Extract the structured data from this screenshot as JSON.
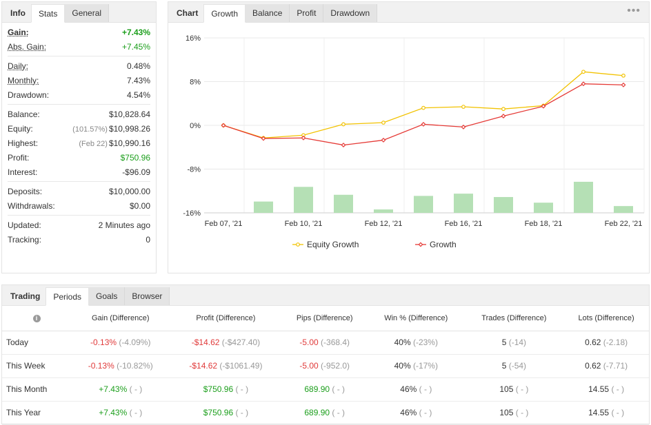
{
  "info_panel": {
    "tabs": [
      {
        "label": "Info",
        "title": true
      },
      {
        "label": "Stats",
        "active": true
      },
      {
        "label": "General"
      }
    ],
    "groups": [
      [
        {
          "label": "Gain:",
          "value": "+7.43%",
          "bold": true,
          "underline": true,
          "color": "green"
        },
        {
          "label": "Abs. Gain:",
          "value": "+7.45%",
          "underline": true,
          "color": "green"
        }
      ],
      [
        {
          "label": "Daily:",
          "value": "0.48%",
          "underline": true
        },
        {
          "label": "Monthly:",
          "value": "7.43%",
          "underline": true
        },
        {
          "label": "Drawdown:",
          "value": "4.54%"
        }
      ],
      [
        {
          "label": "Balance:",
          "value": "$10,828.64"
        },
        {
          "label": "Equity:",
          "sub": "(101.57%)",
          "value": "$10,998.26"
        },
        {
          "label": "Highest:",
          "sub": "(Feb 22)",
          "value": "$10,990.16"
        },
        {
          "label": "Profit:",
          "value": "$750.96",
          "color": "green"
        },
        {
          "label": "Interest:",
          "value": "-$96.09"
        }
      ],
      [
        {
          "label": "Deposits:",
          "value": "$10,000.00"
        },
        {
          "label": "Withdrawals:",
          "value": "$0.00"
        }
      ],
      [
        {
          "label": "Updated:",
          "value": "2 Minutes ago"
        },
        {
          "label": "Tracking:",
          "value": "0"
        }
      ]
    ]
  },
  "chart_panel": {
    "tabs": [
      {
        "label": "Chart",
        "title": true
      },
      {
        "label": "Growth",
        "active": true
      },
      {
        "label": "Balance"
      },
      {
        "label": "Profit"
      },
      {
        "label": "Drawdown"
      }
    ],
    "menu_icon": "more-dots-icon"
  },
  "chart_data": {
    "type": "line",
    "yticks": [
      "16%",
      "8%",
      "0%",
      "-8%",
      "-16%"
    ],
    "ylim": [
      -16,
      16
    ],
    "xtick_labels": [
      "Feb 07, '21",
      "Feb 10, '21",
      "Feb 12, '21",
      "Feb 16, '21",
      "Feb 18, '21",
      "Feb 22, '21"
    ],
    "grid": true,
    "legend_position": "bottom",
    "series": [
      {
        "name": "Equity Growth",
        "color": "#f2c200",
        "values": [
          0,
          -2.3,
          -1.8,
          0.2,
          0.5,
          3.2,
          3.4,
          3.0,
          3.6,
          9.8,
          9.1
        ]
      },
      {
        "name": "Growth",
        "color": "#e53935",
        "values": [
          0,
          -2.4,
          -2.3,
          -3.6,
          -2.7,
          0.2,
          -0.3,
          1.7,
          3.5,
          7.6,
          7.4
        ]
      }
    ],
    "bars": {
      "color": "#b5e0b5",
      "values": [
        0,
        2.0,
        4.6,
        3.2,
        0.6,
        3.0,
        3.4,
        2.8,
        1.8,
        5.5,
        1.2
      ]
    }
  },
  "trading_panel": {
    "tabs": [
      {
        "label": "Trading",
        "title": true
      },
      {
        "label": "Periods",
        "active": true
      },
      {
        "label": "Goals"
      },
      {
        "label": "Browser"
      }
    ],
    "columns": [
      "Gain (Difference)",
      "Profit (Difference)",
      "Pips (Difference)",
      "Win % (Difference)",
      "Trades (Difference)",
      "Lots (Difference)"
    ],
    "rows": [
      {
        "label": "Today",
        "cells": [
          {
            "v": "-0.13%",
            "d": "(-4.09%)",
            "c": "red"
          },
          {
            "v": "-$14.62",
            "d": "(-$427.40)",
            "c": "red"
          },
          {
            "v": "-5.00",
            "d": "(-368.4)",
            "c": "red"
          },
          {
            "v": "40%",
            "d": "(-23%)",
            "c": ""
          },
          {
            "v": "5",
            "d": "(-14)",
            "c": ""
          },
          {
            "v": "0.62",
            "d": "(-2.18)",
            "c": ""
          }
        ]
      },
      {
        "label": "This Week",
        "cells": [
          {
            "v": "-0.13%",
            "d": "(-10.82%)",
            "c": "red"
          },
          {
            "v": "-$14.62",
            "d": "(-$1061.49)",
            "c": "red"
          },
          {
            "v": "-5.00",
            "d": "(-952.0)",
            "c": "red"
          },
          {
            "v": "40%",
            "d": "(-17%)",
            "c": ""
          },
          {
            "v": "5",
            "d": "(-54)",
            "c": ""
          },
          {
            "v": "0.62",
            "d": "(-7.71)",
            "c": ""
          }
        ]
      },
      {
        "label": "This Month",
        "cells": [
          {
            "v": "+7.43%",
            "d": "( - )",
            "c": "green"
          },
          {
            "v": "$750.96",
            "d": "( - )",
            "c": "green"
          },
          {
            "v": "689.90",
            "d": "( - )",
            "c": "green"
          },
          {
            "v": "46%",
            "d": "( - )",
            "c": ""
          },
          {
            "v": "105",
            "d": "( - )",
            "c": ""
          },
          {
            "v": "14.55",
            "d": "( - )",
            "c": ""
          }
        ]
      },
      {
        "label": "This Year",
        "cells": [
          {
            "v": "+7.43%",
            "d": "( - )",
            "c": "green"
          },
          {
            "v": "$750.96",
            "d": "( - )",
            "c": "green"
          },
          {
            "v": "689.90",
            "d": "( - )",
            "c": "green"
          },
          {
            "v": "46%",
            "d": "( - )",
            "c": ""
          },
          {
            "v": "105",
            "d": "( - )",
            "c": ""
          },
          {
            "v": "14.55",
            "d": "( - )",
            "c": ""
          }
        ]
      }
    ]
  }
}
